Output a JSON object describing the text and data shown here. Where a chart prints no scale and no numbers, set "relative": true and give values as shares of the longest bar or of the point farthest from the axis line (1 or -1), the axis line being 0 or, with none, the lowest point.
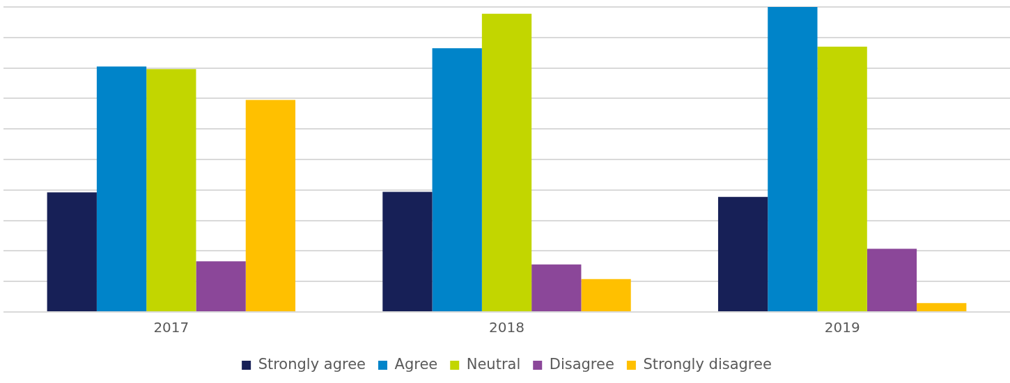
{
  "chart_data": {
    "type": "bar",
    "relative": true,
    "categories": [
      "2017",
      "2018",
      "2019"
    ],
    "series": [
      {
        "name": "Strongly agree",
        "color": "#172057",
        "values": [
          0.392,
          0.394,
          0.377
        ]
      },
      {
        "name": "Agree",
        "color": "#0084c9",
        "values": [
          0.805,
          0.865,
          1
        ]
      },
      {
        "name": "Neutral",
        "color": "#c2d600",
        "values": [
          0.796,
          0.978,
          0.87
        ]
      },
      {
        "name": "Disagree",
        "color": "#8b4799",
        "values": [
          0.166,
          0.156,
          0.207
        ]
      },
      {
        "name": "Strongly disagree",
        "color": "#ffc000",
        "values": [
          0.695,
          0.108,
          0.029
        ]
      }
    ],
    "grid": "y",
    "legend": "bottom"
  }
}
